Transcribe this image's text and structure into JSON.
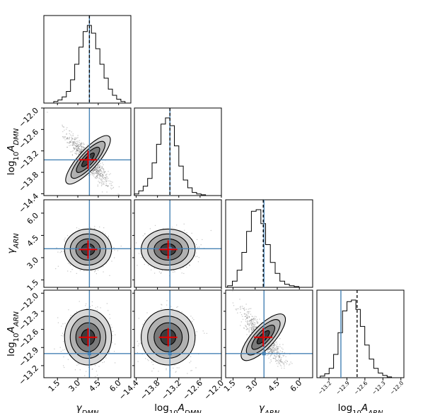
{
  "chart_data": {
    "type": "corner",
    "parameters": [
      {
        "label": "γDMN",
        "label_html": {
          "base": "γ",
          "sub": "DMN"
        },
        "range": [
          0.5,
          6.9
        ],
        "ticks": [
          "1.5",
          "3.0",
          "4.5",
          "6.0"
        ],
        "tick_values": [
          1.5,
          3.0,
          4.5,
          6.0
        ],
        "truth": 3.85,
        "median": 3.85,
        "hist": [
          0.02,
          0.04,
          0.08,
          0.15,
          0.3,
          0.5,
          0.72,
          0.92,
          1.0,
          0.9,
          0.7,
          0.5,
          0.32,
          0.18,
          0.1,
          0.05,
          0.02
        ]
      },
      {
        "label": "log10ADMN",
        "label_html": {
          "base": "log",
          "sub1": "10",
          "mid": "A",
          "sub": "DMN"
        },
        "range": [
          -14.45,
          -12.0
        ],
        "ticks": [
          "−14.4",
          "−13.8",
          "−13.2",
          "−12.6",
          "−12.0"
        ],
        "tick_values": [
          -14.4,
          -13.8,
          -13.2,
          -12.6,
          -12.0
        ],
        "truth": -13.45,
        "median": -13.45,
        "hist": [
          0.02,
          0.06,
          0.12,
          0.22,
          0.42,
          0.66,
          0.92,
          1.0,
          0.9,
          0.64,
          0.38,
          0.2,
          0.1,
          0.04,
          0.02,
          0.01
        ]
      },
      {
        "label": "γARN",
        "label_html": {
          "base": "γ",
          "sub": "ARN"
        },
        "range": [
          1.0,
          6.9
        ],
        "ticks": [
          "1.5",
          "3.0",
          "4.5",
          "6.0"
        ],
        "tick_values": [
          1.5,
          3.0,
          4.5,
          6.0
        ],
        "truth": 3.6,
        "median": 3.55,
        "hist": [
          0.02,
          0.08,
          0.22,
          0.45,
          0.72,
          0.98,
          1.0,
          0.82,
          0.55,
          0.32,
          0.18,
          0.08,
          0.04,
          0.02,
          0.01
        ]
      },
      {
        "label": "log10AARN",
        "label_html": {
          "base": "log",
          "sub1": "10",
          "mid": "A",
          "sub": "ARN"
        },
        "range": [
          -13.4,
          -11.95
        ],
        "ticks": [
          "−13.2",
          "−12.9",
          "−12.6",
          "−12.3",
          "−12.0"
        ],
        "tick_values": [
          -13.2,
          -12.9,
          -12.6,
          -12.3,
          -12.0
        ],
        "truth": -13.0,
        "median": -12.73,
        "hist": [
          0.02,
          0.05,
          0.12,
          0.3,
          0.58,
          0.86,
          0.98,
          1.0,
          0.88,
          0.66,
          0.42,
          0.24,
          0.12,
          0.06,
          0.03,
          0.01
        ]
      }
    ],
    "pairs": [
      {
        "row": 1,
        "col": 0,
        "cx": 3.75,
        "cy": -13.45,
        "sx": 0.75,
        "sy": 0.35,
        "rho": -0.9
      },
      {
        "row": 2,
        "col": 0,
        "cx": 3.75,
        "cy": 3.55,
        "sx": 0.75,
        "sy": 0.6,
        "rho": 0.0
      },
      {
        "row": 2,
        "col": 1,
        "cx": -13.5,
        "cy": 3.55,
        "sx": 0.33,
        "sy": 0.6,
        "rho": 0.0
      },
      {
        "row": 3,
        "col": 0,
        "cx": 3.75,
        "cy": -12.73,
        "sx": 0.75,
        "sy": 0.2,
        "rho": 0.0
      },
      {
        "row": 3,
        "col": 1,
        "cx": -13.5,
        "cy": -12.73,
        "sx": 0.33,
        "sy": 0.2,
        "rho": 0.0
      },
      {
        "row": 3,
        "col": 2,
        "cx": 3.55,
        "cy": -12.73,
        "sx": 0.65,
        "sy": 0.2,
        "rho": -0.85
      }
    ],
    "truth_color": "#4682b4",
    "median_color": "#000000",
    "marker_color": "#e00000",
    "contour_color": "#000000"
  }
}
